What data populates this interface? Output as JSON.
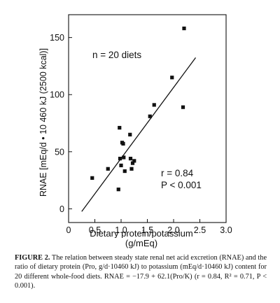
{
  "chart_data": {
    "type": "scatter",
    "xlabel_line1": "Dietary protein/potassium",
    "xlabel_line2": "(g/mEq)",
    "ylabel": "RNAE [mEq/d • 10 460 kJ (2500 kcal)]",
    "xlim": [
      0,
      3.0
    ],
    "ylim": [
      -12,
      170
    ],
    "x_ticks": [
      "0",
      "0.5",
      "1.0",
      "1.5",
      "2.0",
      "2.5",
      "3.0"
    ],
    "y_ticks": [
      "0",
      "50",
      "100",
      "150"
    ],
    "annotations": {
      "n_label": "n = 20 diets",
      "r_label": "r =  0.84",
      "p_label": "P < 0.001"
    },
    "points": [
      {
        "x": 0.45,
        "y": 27
      },
      {
        "x": 0.75,
        "y": 35
      },
      {
        "x": 0.95,
        "y": 17
      },
      {
        "x": 0.97,
        "y": 71
      },
      {
        "x": 0.98,
        "y": 44
      },
      {
        "x": 1.0,
        "y": 38
      },
      {
        "x": 1.02,
        "y": 58
      },
      {
        "x": 1.04,
        "y": 57
      },
      {
        "x": 1.05,
        "y": 45
      },
      {
        "x": 1.07,
        "y": 33
      },
      {
        "x": 1.17,
        "y": 65
      },
      {
        "x": 1.18,
        "y": 44
      },
      {
        "x": 1.2,
        "y": 35
      },
      {
        "x": 1.22,
        "y": 40
      },
      {
        "x": 1.25,
        "y": 42
      },
      {
        "x": 1.55,
        "y": 81
      },
      {
        "x": 1.63,
        "y": 91
      },
      {
        "x": 1.97,
        "y": 115
      },
      {
        "x": 2.18,
        "y": 89
      },
      {
        "x": 2.2,
        "y": 158
      }
    ],
    "regression": {
      "intercept": -17.9,
      "slope": 62.1,
      "x_range": [
        0.25,
        2.42
      ]
    }
  },
  "caption": {
    "label": "FIGURE 2.",
    "text": " The relation between steady state renal net acid excretion (RNAE) and the ratio of dietary protein (Pro, g/d·10460 kJ) to potassium (mEq/d·10460 kJ) content for 20 different whole-food diets. RNAE = −17.9 + 62.1(Pro/K) (r = 0.84, R² = 0.71, P < 0.001)."
  }
}
